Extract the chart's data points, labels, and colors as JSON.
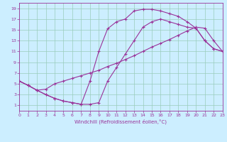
{
  "xlabel": "Windchill (Refroidissement éolien,°C)",
  "bg_color": "#cceeff",
  "line_color": "#993399",
  "grid_color": "#99ccbb",
  "xlim": [
    0,
    23
  ],
  "ylim": [
    0,
    20
  ],
  "xticks": [
    0,
    1,
    2,
    3,
    4,
    5,
    6,
    7,
    8,
    9,
    10,
    11,
    12,
    13,
    14,
    15,
    16,
    17,
    18,
    19,
    20,
    21,
    22,
    23
  ],
  "yticks": [
    1,
    3,
    5,
    7,
    9,
    11,
    13,
    15,
    17,
    19
  ],
  "curve1_x": [
    0,
    1,
    2,
    3,
    4,
    5,
    6,
    7,
    8,
    9,
    10,
    11,
    12,
    13,
    14,
    15,
    16,
    17,
    18,
    19,
    20,
    21,
    22,
    23
  ],
  "curve1_y": [
    5.5,
    4.7,
    3.8,
    3.0,
    2.3,
    1.8,
    1.5,
    1.2,
    1.2,
    1.5,
    5.5,
    8.0,
    10.5,
    13.0,
    15.5,
    16.5,
    17.0,
    16.5,
    16.0,
    15.5,
    15.3,
    13.0,
    11.5,
    11.0
  ],
  "curve2_x": [
    0,
    1,
    2,
    3,
    4,
    5,
    6,
    7,
    8,
    9,
    10,
    11,
    12,
    13,
    14,
    15,
    16,
    17,
    18,
    19,
    20,
    21,
    22,
    23
  ],
  "curve2_y": [
    5.5,
    4.7,
    3.8,
    3.0,
    2.3,
    1.8,
    1.5,
    1.2,
    5.5,
    11.0,
    15.2,
    16.5,
    17.0,
    18.5,
    18.8,
    18.8,
    18.5,
    18.0,
    17.5,
    16.5,
    15.3,
    13.0,
    11.5,
    11.0
  ],
  "curve3_x": [
    0,
    1,
    2,
    3,
    4,
    5,
    6,
    7,
    8,
    9,
    10,
    11,
    12,
    13,
    14,
    15,
    16,
    17,
    18,
    19,
    20,
    21,
    22,
    23
  ],
  "curve3_y": [
    5.5,
    4.7,
    3.8,
    4.0,
    5.0,
    5.5,
    6.0,
    6.5,
    7.0,
    7.5,
    8.2,
    8.8,
    9.5,
    10.2,
    11.0,
    11.8,
    12.5,
    13.2,
    14.0,
    14.8,
    15.5,
    15.3,
    13.0,
    11.0
  ]
}
